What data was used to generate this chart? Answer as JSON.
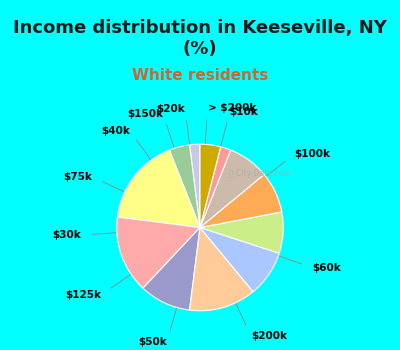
{
  "title": "Income distribution in Keeseville, NY\n(%)",
  "subtitle": "White residents",
  "background_color": "#00FFFF",
  "chart_bg_left": "#d4ecd4",
  "chart_bg_right": "#ffffff",
  "labels": [
    "> $200k",
    "$10k",
    "$100k",
    "$60k",
    "$200k",
    "$50k",
    "$125k",
    "$30k",
    "$75k",
    "$40k",
    "$150k",
    "$20k"
  ],
  "values": [
    2,
    4,
    17,
    15,
    10,
    13,
    9,
    8,
    8,
    8,
    2,
    4
  ],
  "colors": [
    "#c8c8e8",
    "#99cc99",
    "#ffff88",
    "#ffaaaa",
    "#9999cc",
    "#ffcc99",
    "#aac8ff",
    "#ccee88",
    "#ffaa55",
    "#ccbbaa",
    "#ff9999",
    "#ccaa00"
  ],
  "startangle": 90,
  "title_fontsize": 13,
  "subtitle_fontsize": 11,
  "subtitle_color": "#cc6633",
  "label_fontsize": 7.5
}
